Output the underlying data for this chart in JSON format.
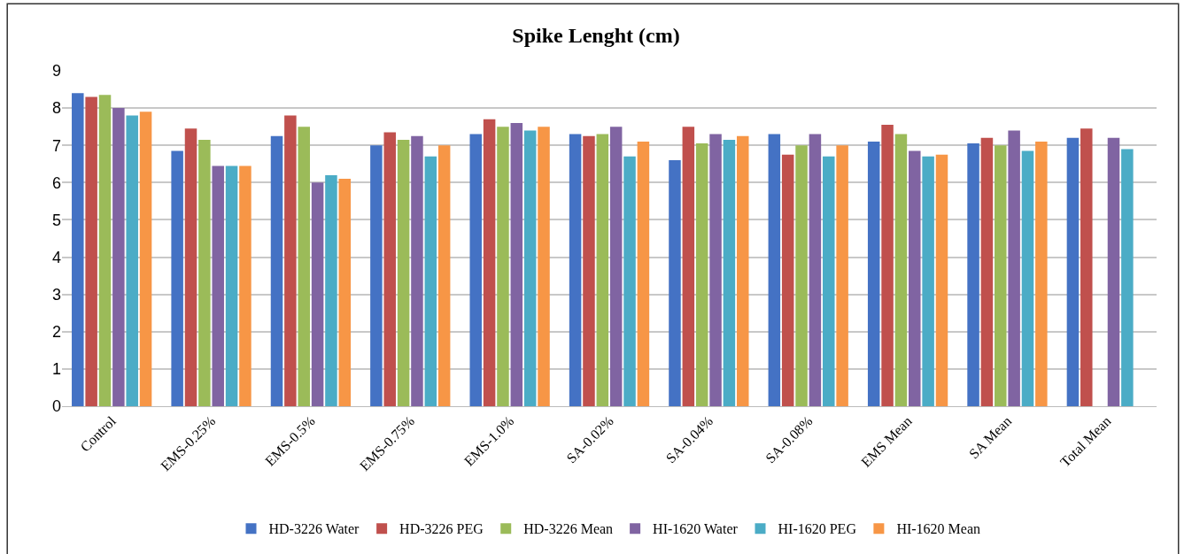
{
  "chart_data": {
    "type": "bar",
    "title": "Spike Lenght (cm)",
    "categories": [
      "Control",
      "EMS-0.25%",
      "EMS-0.5%",
      "EMS-0.75%",
      "EMS-1.0%",
      "SA-0.02%",
      "SA-0.04%",
      "SA-0.08%",
      "EMS Mean",
      "SA Mean",
      "Total Mean"
    ],
    "series": [
      {
        "name": "HD-3226 Water",
        "color": "#4472c4",
        "values": [
          8.4,
          6.85,
          7.25,
          7.0,
          7.3,
          7.3,
          6.6,
          7.3,
          7.1,
          7.05,
          7.2
        ]
      },
      {
        "name": "HD-3226 PEG",
        "color": "#c0504d",
        "values": [
          8.3,
          7.45,
          7.8,
          7.35,
          7.7,
          7.25,
          7.5,
          6.75,
          7.55,
          7.2,
          7.45
        ]
      },
      {
        "name": "HD-3226 Mean",
        "color": "#9bbb59",
        "values": [
          8.35,
          7.15,
          7.5,
          7.15,
          7.5,
          7.3,
          7.05,
          7.0,
          7.3,
          7.0,
          null
        ]
      },
      {
        "name": "HI-1620 Water",
        "color": "#8064a2",
        "values": [
          8.0,
          6.45,
          6.0,
          7.25,
          7.6,
          7.5,
          7.3,
          7.3,
          6.85,
          7.4,
          7.2
        ]
      },
      {
        "name": "HI-1620 PEG",
        "color": "#4bacc6",
        "values": [
          7.8,
          6.45,
          6.2,
          6.7,
          7.4,
          6.7,
          7.15,
          6.7,
          6.7,
          6.85,
          6.9
        ]
      },
      {
        "name": "HI-1620 Mean",
        "color": "#f79646",
        "values": [
          7.9,
          6.45,
          6.1,
          7.0,
          7.5,
          7.1,
          7.25,
          7.0,
          6.75,
          7.1,
          null
        ]
      }
    ],
    "ylim": [
      0,
      9
    ],
    "yticks": [
      0,
      1,
      2,
      3,
      4,
      5,
      6,
      7,
      8,
      9
    ],
    "grid": "y",
    "legend": "bottom"
  }
}
